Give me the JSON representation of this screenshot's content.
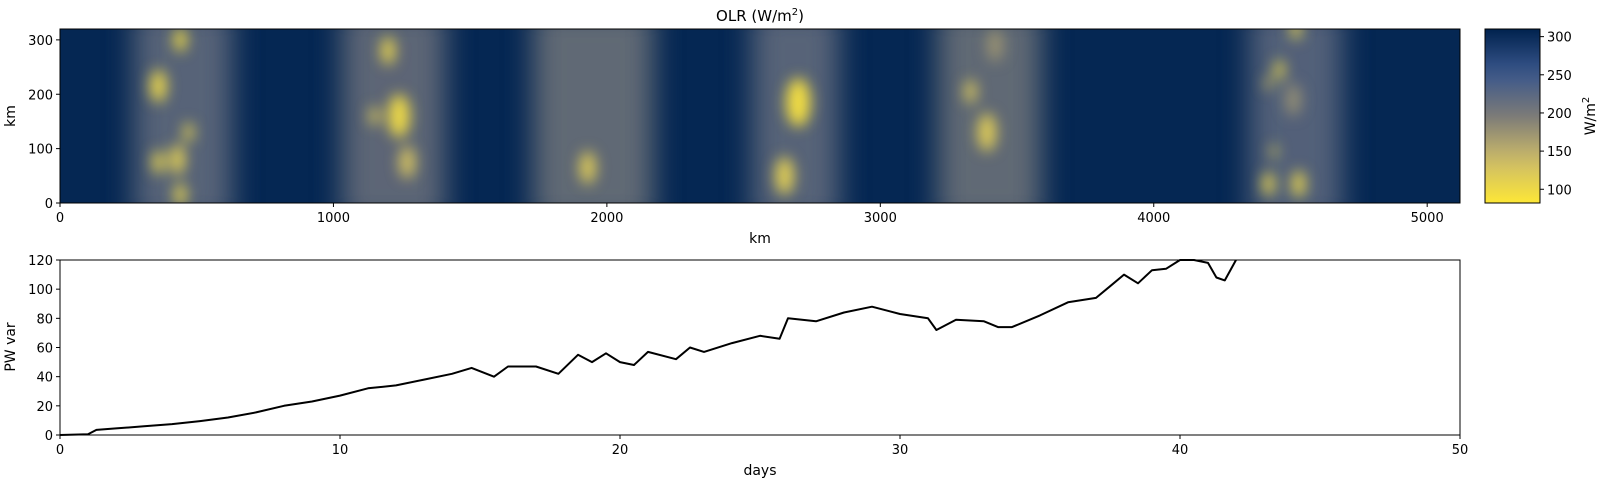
{
  "chart_data": [
    {
      "type": "heatmap",
      "title": "OLR (W/m²)",
      "title_main": "OLR (W/m",
      "title_sup": "2",
      "title_close": ")",
      "xlabel": "km",
      "ylabel": "km",
      "xlim": [
        0,
        5120
      ],
      "ylim": [
        0,
        320
      ],
      "xticks": [
        0,
        1000,
        2000,
        3000,
        4000,
        5000
      ],
      "yticks": [
        0,
        100,
        200,
        300
      ],
      "colormap": "cividis (reversed)",
      "colorbar": {
        "label_main": "W/m",
        "label_sup": "2",
        "range": [
          82,
          310
        ],
        "ticks": [
          100,
          150,
          200,
          250,
          300
        ],
        "low_color": "#fde737",
        "high_color": "#00224e"
      },
      "background_olr": 305,
      "convective_bands": [
        {
          "center_x": 450,
          "halfwidth": 180,
          "olr": 215
        },
        {
          "center_x": 1220,
          "halfwidth": 190,
          "olr": 210
        },
        {
          "center_x": 1950,
          "halfwidth": 220,
          "olr": 205
        },
        {
          "center_x": 2690,
          "halfwidth": 160,
          "olr": 215
        },
        {
          "center_x": 3400,
          "halfwidth": 190,
          "olr": 205
        },
        {
          "center_x": 4520,
          "halfwidth": 170,
          "olr": 220
        }
      ],
      "convective_cells": [
        {
          "x": 440,
          "y": 300,
          "r": 22,
          "olr": 95
        },
        {
          "x": 360,
          "y": 215,
          "r": 30,
          "olr": 105
        },
        {
          "x": 470,
          "y": 130,
          "r": 18,
          "olr": 110
        },
        {
          "x": 430,
          "y": 80,
          "r": 28,
          "olr": 115
        },
        {
          "x": 360,
          "y": 75,
          "r": 22,
          "olr": 110
        },
        {
          "x": 440,
          "y": 15,
          "r": 22,
          "olr": 110
        },
        {
          "x": 1200,
          "y": 280,
          "r": 26,
          "olr": 110
        },
        {
          "x": 1240,
          "y": 160,
          "r": 40,
          "olr": 100
        },
        {
          "x": 1150,
          "y": 160,
          "r": 18,
          "olr": 120
        },
        {
          "x": 1270,
          "y": 75,
          "r": 30,
          "olr": 130
        },
        {
          "x": 1930,
          "y": 65,
          "r": 30,
          "olr": 120
        },
        {
          "x": 2700,
          "y": 185,
          "r": 45,
          "olr": 95
        },
        {
          "x": 2650,
          "y": 50,
          "r": 35,
          "olr": 115
        },
        {
          "x": 3330,
          "y": 205,
          "r": 22,
          "olr": 125
        },
        {
          "x": 3390,
          "y": 130,
          "r": 35,
          "olr": 120
        },
        {
          "x": 3420,
          "y": 290,
          "r": 30,
          "olr": 175
        },
        {
          "x": 4460,
          "y": 245,
          "r": 18,
          "olr": 105
        },
        {
          "x": 4420,
          "y": 220,
          "r": 12,
          "olr": 120
        },
        {
          "x": 4510,
          "y": 190,
          "r": 30,
          "olr": 180
        },
        {
          "x": 4440,
          "y": 95,
          "r": 12,
          "olr": 110
        },
        {
          "x": 4420,
          "y": 35,
          "r": 22,
          "olr": 110
        },
        {
          "x": 4530,
          "y": 35,
          "r": 25,
          "olr": 110
        },
        {
          "x": 4520,
          "y": 320,
          "r": 20,
          "olr": 115
        }
      ]
    },
    {
      "type": "line",
      "title": "",
      "xlabel": "days",
      "ylabel": "PW var",
      "xlim": [
        0,
        50
      ],
      "ylim": [
        0,
        120
      ],
      "xticks": [
        0,
        10,
        20,
        30,
        40,
        50
      ],
      "yticks": [
        0,
        20,
        40,
        60,
        80,
        100,
        120
      ],
      "color": "#000000",
      "x": [
        0,
        1,
        1.3,
        2,
        3,
        4,
        5,
        6,
        7,
        8,
        9,
        10,
        11,
        12,
        13,
        14,
        14.7,
        15.5,
        16,
        17,
        17.8,
        18.5,
        19,
        19.5,
        20,
        20.5,
        21,
        22,
        22.5,
        23,
        24,
        25,
        25.7,
        26,
        27,
        28,
        29,
        30,
        31,
        31.3,
        32,
        33,
        33.5,
        34,
        35,
        36,
        37,
        37.5,
        38,
        38.5,
        39,
        39.5,
        40,
        40.5,
        41,
        41.3,
        41.6,
        42
      ],
      "y": [
        0,
        0.5,
        3.5,
        4.5,
        6,
        7.5,
        9.5,
        12,
        15.5,
        20,
        23,
        27,
        32,
        34,
        38,
        42,
        46,
        40,
        47,
        47,
        42,
        55,
        50,
        56,
        50,
        48,
        57,
        52,
        60,
        57,
        63,
        68,
        66,
        80,
        78,
        84,
        88,
        83,
        80,
        72,
        79,
        78,
        74,
        74,
        82,
        91,
        94,
        102,
        110,
        104,
        113,
        114,
        120,
        120,
        118,
        108,
        106,
        120
      ]
    }
  ]
}
